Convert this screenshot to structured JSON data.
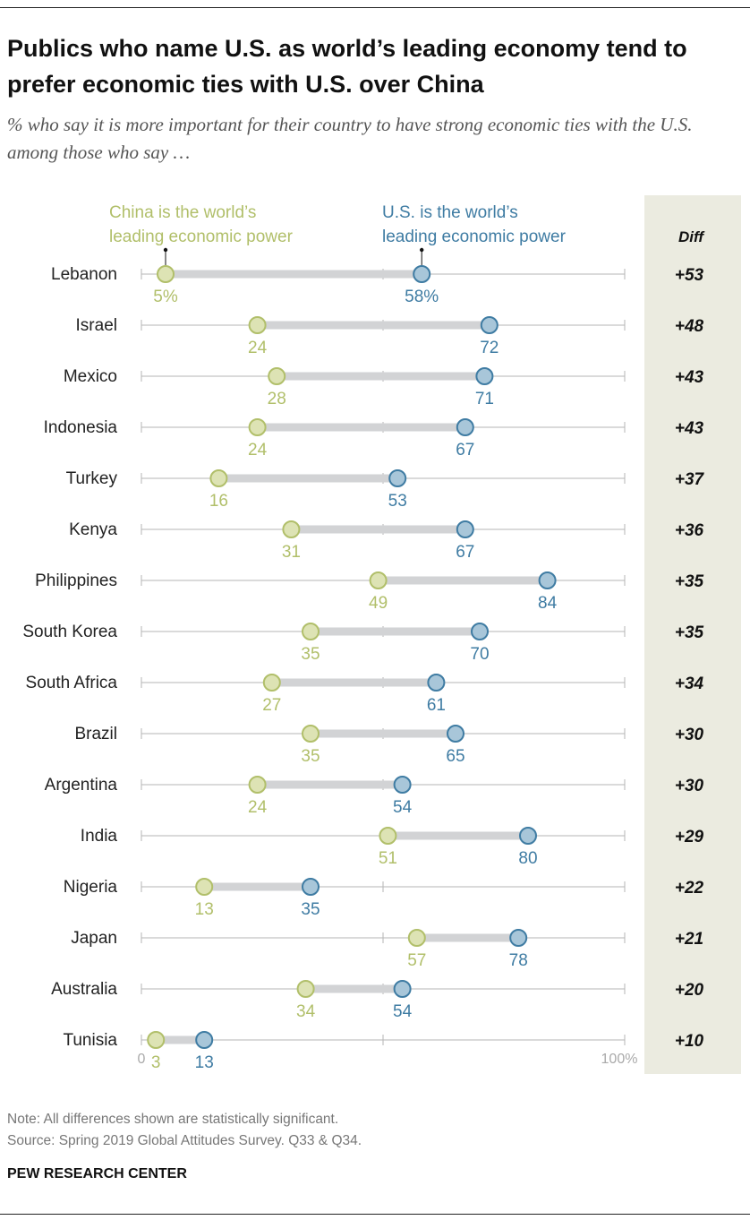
{
  "header": {
    "title": "Publics who name U.S. as world’s leading economy tend to prefer economic ties with U.S. over China",
    "subtitle": "% who say it is more important for their country to have strong economic ties with the U.S. among those who say …"
  },
  "chart_data": {
    "type": "dot-range",
    "legend": {
      "china": [
        "China is the world’s",
        "leading economic power"
      ],
      "us": [
        "U.S. is the world’s",
        "leading economic power"
      ]
    },
    "diff_header": "Diff",
    "xlim": [
      0,
      100
    ],
    "axis_labels": {
      "min": "0",
      "max": "100%"
    },
    "first_row_suffix": "%",
    "colors": {
      "china": "#b1bf6a",
      "china_fill": "#dde3b4",
      "us": "#3f7ca3",
      "us_fill": "#a8c6d9",
      "range_bar": "#d2d3d5",
      "diff_panel": "#ebebe0"
    },
    "rows": [
      {
        "country": "Lebanon",
        "china": 5,
        "us": 58,
        "diff": "+53"
      },
      {
        "country": "Israel",
        "china": 24,
        "us": 72,
        "diff": "+48"
      },
      {
        "country": "Mexico",
        "china": 28,
        "us": 71,
        "diff": "+43"
      },
      {
        "country": "Indonesia",
        "china": 24,
        "us": 67,
        "diff": "+43"
      },
      {
        "country": "Turkey",
        "china": 16,
        "us": 53,
        "diff": "+37"
      },
      {
        "country": "Kenya",
        "china": 31,
        "us": 67,
        "diff": "+36"
      },
      {
        "country": "Philippines",
        "china": 49,
        "us": 84,
        "diff": "+35"
      },
      {
        "country": "South Korea",
        "china": 35,
        "us": 70,
        "diff": "+35"
      },
      {
        "country": "South Africa",
        "china": 27,
        "us": 61,
        "diff": "+34"
      },
      {
        "country": "Brazil",
        "china": 35,
        "us": 65,
        "diff": "+30"
      },
      {
        "country": "Argentina",
        "china": 24,
        "us": 54,
        "diff": "+30"
      },
      {
        "country": "India",
        "china": 51,
        "us": 80,
        "diff": "+29"
      },
      {
        "country": "Nigeria",
        "china": 13,
        "us": 35,
        "diff": "+22"
      },
      {
        "country": "Japan",
        "china": 57,
        "us": 78,
        "diff": "+21"
      },
      {
        "country": "Australia",
        "china": 34,
        "us": 54,
        "diff": "+20"
      },
      {
        "country": "Tunisia",
        "china": 3,
        "us": 13,
        "diff": "+10"
      }
    ]
  },
  "footer": {
    "note": "Note: All differences shown are statistically significant.",
    "source": "Source: Spring 2019 Global Attitudes Survey. Q33 & Q34.",
    "brand": "PEW RESEARCH CENTER"
  }
}
